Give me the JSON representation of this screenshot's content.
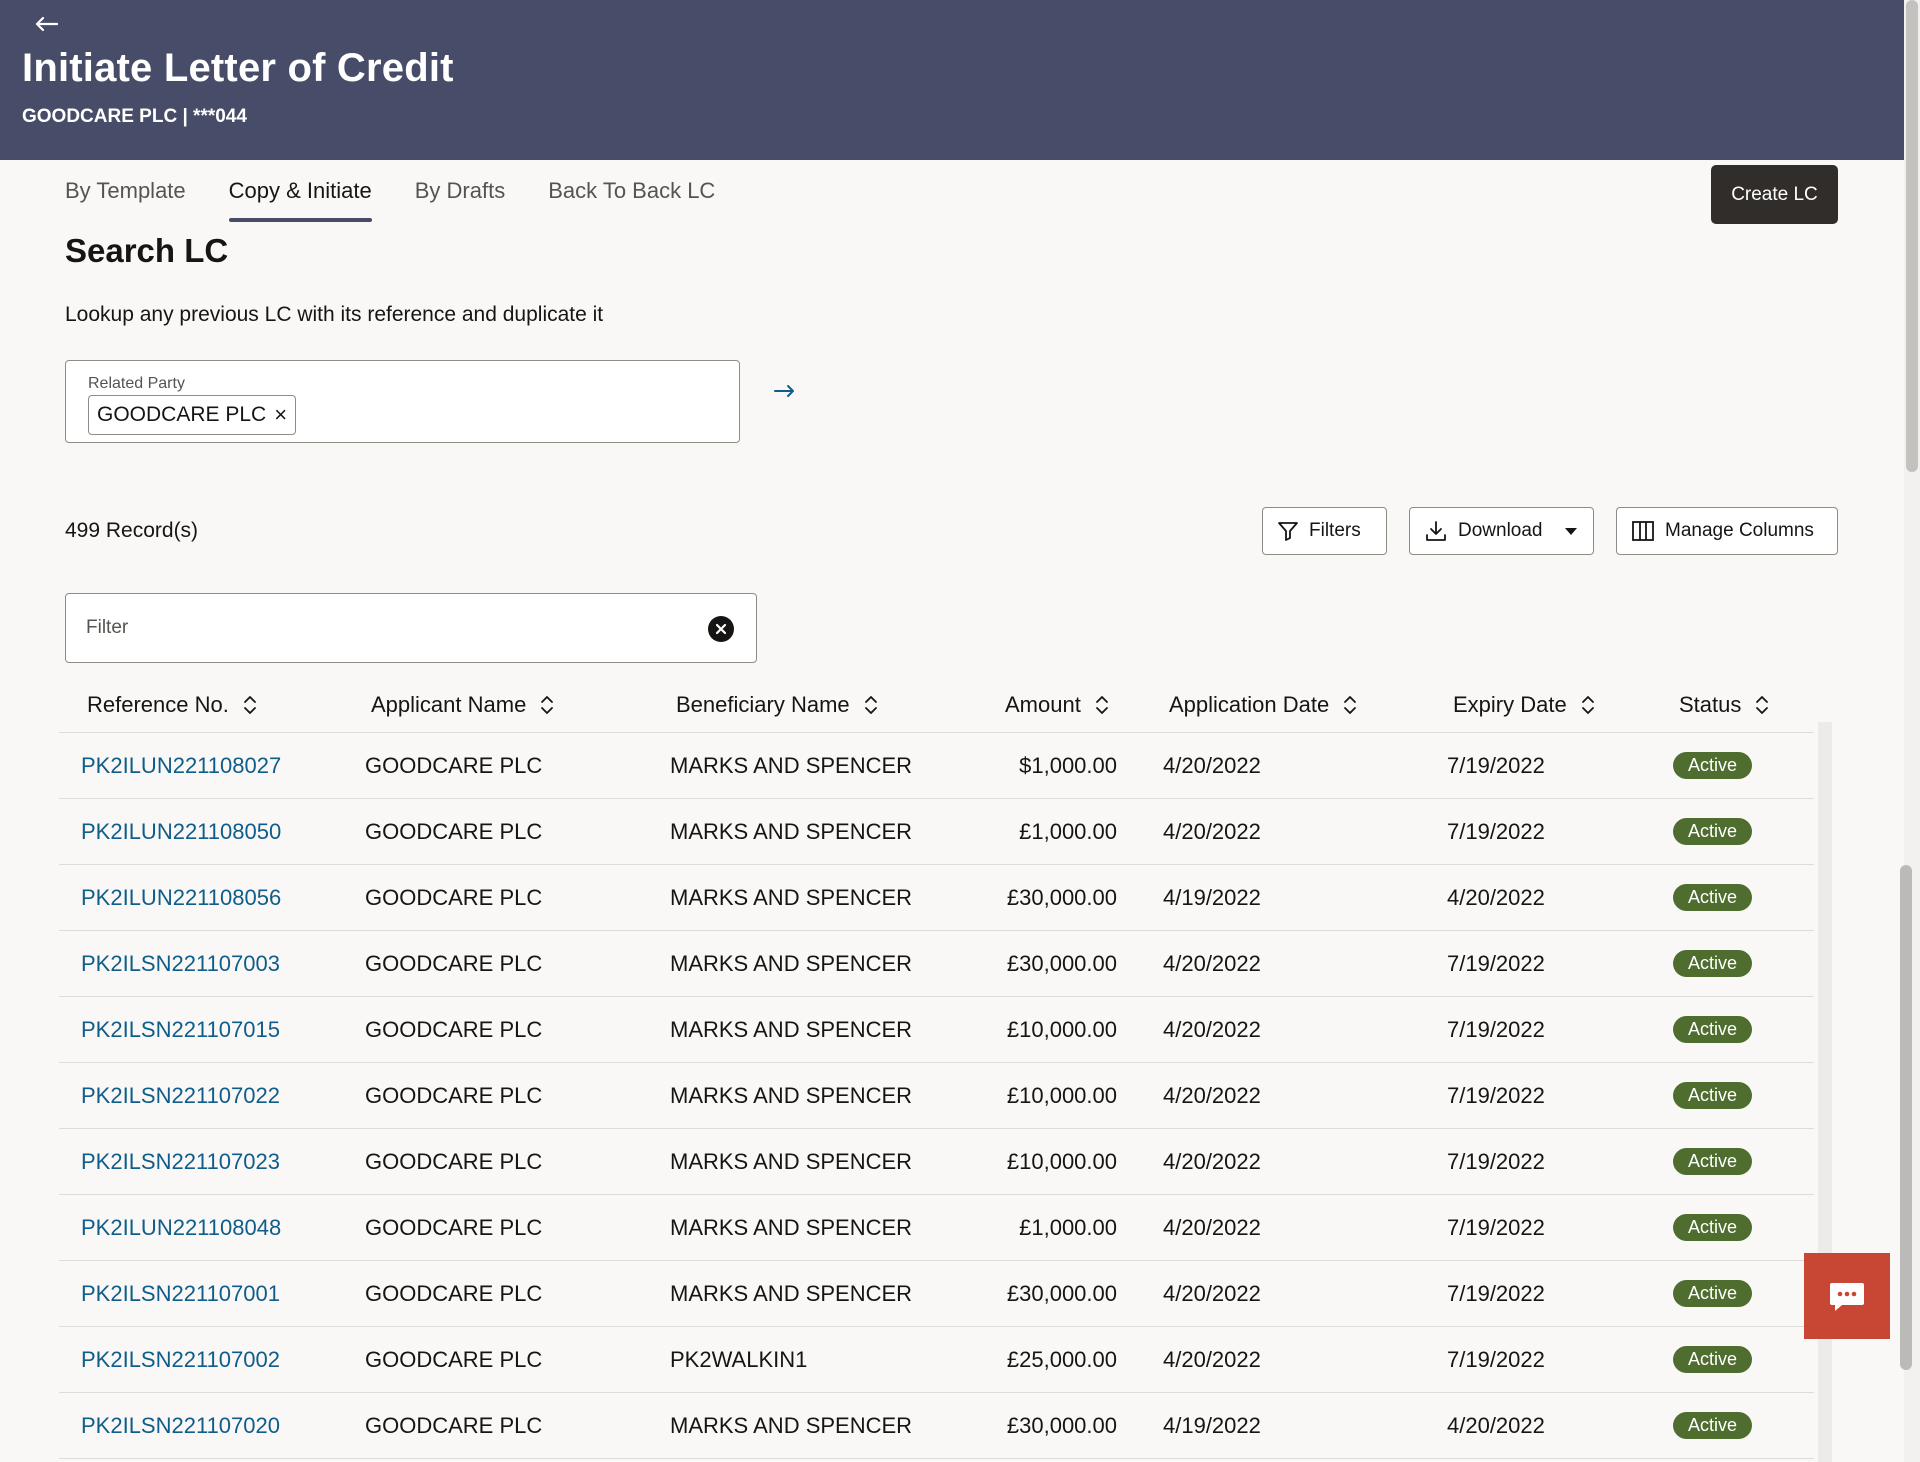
{
  "header": {
    "title": "Initiate Letter of Credit",
    "subtitle": "GOODCARE PLC | ***044"
  },
  "tabs": [
    {
      "label": "By Template"
    },
    {
      "label": "Copy & Initiate",
      "active": true
    },
    {
      "label": "By Drafts"
    },
    {
      "label": "Back To Back LC"
    }
  ],
  "create_button": "Create LC",
  "search": {
    "title": "Search LC",
    "description": "Lookup any previous LC with its reference and duplicate it",
    "related_party_label": "Related Party",
    "related_party_value": "GOODCARE PLC"
  },
  "records": "499 Record(s)",
  "toolbar": {
    "filters": "Filters",
    "download": "Download",
    "manage_columns": "Manage Columns"
  },
  "filter": {
    "placeholder": "Filter"
  },
  "table": {
    "headers": [
      "Reference No.",
      "Applicant Name",
      "Beneficiary Name",
      "Amount",
      "Application Date",
      "Expiry Date",
      "Status"
    ],
    "rows": [
      [
        "PK2ILUN221108027",
        "GOODCARE PLC",
        "MARKS AND SPENCER",
        "$1,000.00",
        "4/20/2022",
        "7/19/2022",
        "Active"
      ],
      [
        "PK2ILUN221108050",
        "GOODCARE PLC",
        "MARKS AND SPENCER",
        "£1,000.00",
        "4/20/2022",
        "7/19/2022",
        "Active"
      ],
      [
        "PK2ILUN221108056",
        "GOODCARE PLC",
        "MARKS AND SPENCER",
        "£30,000.00",
        "4/19/2022",
        "4/20/2022",
        "Active"
      ],
      [
        "PK2ILSN221107003",
        "GOODCARE PLC",
        "MARKS AND SPENCER",
        "£30,000.00",
        "4/20/2022",
        "7/19/2022",
        "Active"
      ],
      [
        "PK2ILSN221107015",
        "GOODCARE PLC",
        "MARKS AND SPENCER",
        "£10,000.00",
        "4/20/2022",
        "7/19/2022",
        "Active"
      ],
      [
        "PK2ILSN221107022",
        "GOODCARE PLC",
        "MARKS AND SPENCER",
        "£10,000.00",
        "4/20/2022",
        "7/19/2022",
        "Active"
      ],
      [
        "PK2ILSN221107023",
        "GOODCARE PLC",
        "MARKS AND SPENCER",
        "£10,000.00",
        "4/20/2022",
        "7/19/2022",
        "Active"
      ],
      [
        "PK2ILUN221108048",
        "GOODCARE PLC",
        "MARKS AND SPENCER",
        "£1,000.00",
        "4/20/2022",
        "7/19/2022",
        "Active"
      ],
      [
        "PK2ILSN221107001",
        "GOODCARE PLC",
        "MARKS AND SPENCER",
        "£30,000.00",
        "4/20/2022",
        "7/19/2022",
        "Active"
      ],
      [
        "PK2ILSN221107002",
        "GOODCARE PLC",
        "PK2WALKIN1",
        "£25,000.00",
        "4/20/2022",
        "7/19/2022",
        "Active"
      ],
      [
        "PK2ILSN221107020",
        "GOODCARE PLC",
        "MARKS AND SPENCER",
        "£30,000.00",
        "4/19/2022",
        "4/20/2022",
        "Active"
      ]
    ]
  },
  "colors": {
    "header_bg": "#474c68",
    "link": "#0f5d8a",
    "status_active": "#4f6d2f",
    "chat_button": "#c74634"
  },
  "icons": {
    "back": "arrow-left-icon",
    "go": "arrow-right-icon",
    "filters": "funnel-icon",
    "download": "download-icon",
    "columns": "columns-icon",
    "clear": "close-circle-icon",
    "sort": "sort-icon",
    "chat": "chat-icon"
  }
}
